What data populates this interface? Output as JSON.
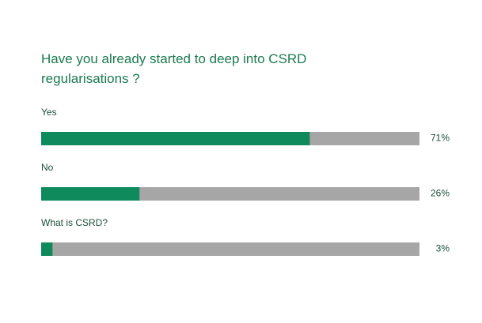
{
  "chart_data": {
    "type": "hbar",
    "title": "Have you already started to deep into CSRD regularisations ?",
    "categories": [
      "Yes",
      "No",
      "What is CSRD?"
    ],
    "values": [
      71,
      26,
      3
    ],
    "value_labels": [
      "71%",
      "26%",
      "3%"
    ],
    "xlim": [
      0,
      100
    ],
    "color": "#0f8a5c",
    "track_color": "#a6a6a6"
  }
}
